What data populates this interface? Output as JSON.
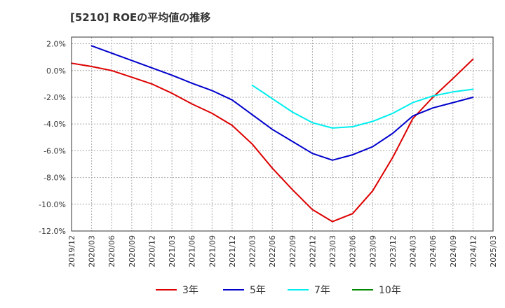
{
  "chart_data": {
    "type": "line",
    "title": "[5210]  ROEの平均値の推移",
    "xlabel": "",
    "ylabel": "",
    "ylim": [
      -12,
      2.5
    ],
    "y_ticks": [
      "2.0%",
      "0.0%",
      "-2.0%",
      "-4.0%",
      "-6.0%",
      "-8.0%",
      "-10.0%",
      "-12.0%"
    ],
    "y_tick_values": [
      2,
      0,
      -2,
      -4,
      -6,
      -8,
      -10,
      -12
    ],
    "x_ticks": [
      "2019/12",
      "2020/03",
      "2020/06",
      "2020/09",
      "2020/12",
      "2021/03",
      "2021/06",
      "2021/09",
      "2021/12",
      "2022/03",
      "2022/06",
      "2022/09",
      "2022/12",
      "2023/03",
      "2023/06",
      "2023/09",
      "2023/12",
      "2024/03",
      "2024/06",
      "2024/09",
      "2024/12",
      "2025/03"
    ],
    "grid": true,
    "legend_position": "bottom",
    "series": [
      {
        "name": "3年",
        "color": "#dd0000",
        "points": [
          [
            "2019/12",
            0.55
          ],
          [
            "2020/03",
            0.3
          ],
          [
            "2020/06",
            0.0
          ],
          [
            "2020/09",
            -0.5
          ],
          [
            "2020/12",
            -1.0
          ],
          [
            "2021/03",
            -1.7
          ],
          [
            "2021/06",
            -2.5
          ],
          [
            "2021/09",
            -3.2
          ],
          [
            "2021/12",
            -4.1
          ],
          [
            "2022/03",
            -5.5
          ],
          [
            "2022/06",
            -7.3
          ],
          [
            "2022/09",
            -8.9
          ],
          [
            "2022/12",
            -10.4
          ],
          [
            "2023/03",
            -11.3
          ],
          [
            "2023/06",
            -10.7
          ],
          [
            "2023/09",
            -9.0
          ],
          [
            "2023/12",
            -6.5
          ],
          [
            "2024/03",
            -3.6
          ],
          [
            "2024/06",
            -2.0
          ],
          [
            "2024/09",
            -0.6
          ],
          [
            "2024/12",
            0.85
          ]
        ]
      },
      {
        "name": "5年",
        "color": "#0000cc",
        "points": [
          [
            "2020/03",
            1.85
          ],
          [
            "2020/06",
            1.3
          ],
          [
            "2020/09",
            0.75
          ],
          [
            "2020/12",
            0.2
          ],
          [
            "2021/03",
            -0.35
          ],
          [
            "2021/06",
            -0.95
          ],
          [
            "2021/09",
            -1.5
          ],
          [
            "2021/12",
            -2.2
          ],
          [
            "2022/03",
            -3.3
          ],
          [
            "2022/06",
            -4.4
          ],
          [
            "2022/09",
            -5.3
          ],
          [
            "2022/12",
            -6.2
          ],
          [
            "2023/03",
            -6.7
          ],
          [
            "2023/06",
            -6.3
          ],
          [
            "2023/09",
            -5.7
          ],
          [
            "2023/12",
            -4.7
          ],
          [
            "2024/03",
            -3.4
          ],
          [
            "2024/06",
            -2.8
          ],
          [
            "2024/09",
            -2.4
          ],
          [
            "2024/12",
            -2.0
          ]
        ]
      },
      {
        "name": "7年",
        "color": "#00eeee",
        "points": [
          [
            "2022/03",
            -1.1
          ],
          [
            "2022/06",
            -2.1
          ],
          [
            "2022/09",
            -3.1
          ],
          [
            "2022/12",
            -3.9
          ],
          [
            "2023/03",
            -4.3
          ],
          [
            "2023/06",
            -4.2
          ],
          [
            "2023/09",
            -3.8
          ],
          [
            "2023/12",
            -3.2
          ],
          [
            "2024/03",
            -2.4
          ],
          [
            "2024/06",
            -1.9
          ],
          [
            "2024/09",
            -1.6
          ],
          [
            "2024/12",
            -1.4
          ]
        ]
      },
      {
        "name": "10年",
        "color": "#008800",
        "points": []
      }
    ]
  }
}
